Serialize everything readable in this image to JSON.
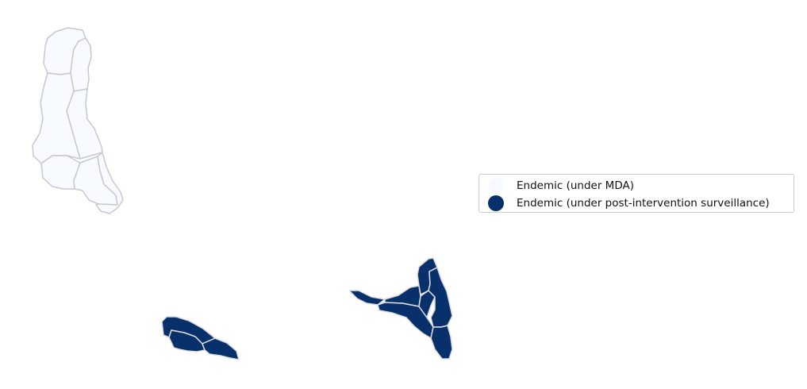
{
  "legend": {
    "items": [
      {
        "label": "Endemic (under MDA)",
        "color": "#f7fbff"
      },
      {
        "label": "Endemic (under post-intervention surveillance)",
        "color": "#08306b"
      }
    ]
  },
  "colors": {
    "border_light": "#c8c8cc",
    "border_dark": "#dddddd",
    "mda": "#f7fbff",
    "surveillance": "#08306b"
  }
}
